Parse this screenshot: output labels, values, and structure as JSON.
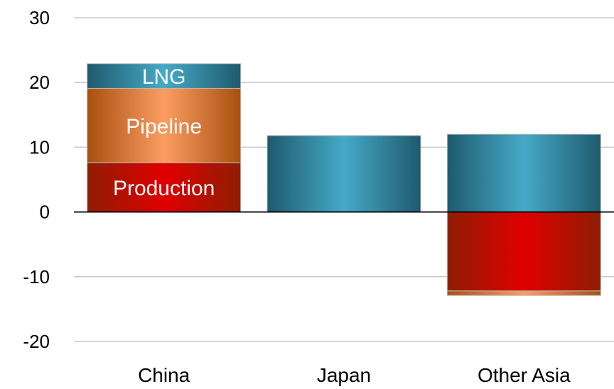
{
  "chart_data": {
    "type": "bar",
    "stacked": true,
    "categories": [
      "China",
      "Japan",
      "Other Asia"
    ],
    "series": [
      {
        "name": "Production",
        "values": [
          7.6,
          0,
          -12.2
        ],
        "color": "#d40000"
      },
      {
        "name": "Pipeline",
        "values": [
          11.5,
          0,
          -0.7
        ],
        "color": "#f28a3a"
      },
      {
        "name": "LNG",
        "values": [
          3.8,
          11.8,
          12.0
        ],
        "color": "#3a9ab5"
      }
    ],
    "segment_labels": [
      {
        "category": "China",
        "series": "Production",
        "text": "Production"
      },
      {
        "category": "China",
        "series": "Pipeline",
        "text": "Pipeline"
      },
      {
        "category": "China",
        "series": "LNG",
        "text": "LNG"
      }
    ],
    "y_ticks": [
      "30",
      "20",
      "10",
      "0",
      "-10",
      "-20"
    ],
    "ylim": [
      -20,
      30
    ],
    "grid": true,
    "title": "",
    "xlabel": "",
    "ylabel": ""
  }
}
